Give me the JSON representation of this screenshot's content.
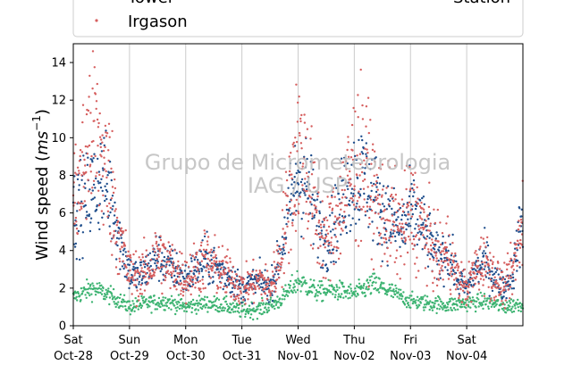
{
  "chart_data": {
    "type": "scatter",
    "ylabel_prefix": "Wind speed (",
    "ylabel_unit_base": "ms",
    "ylabel_unit_exp": "−1",
    "ylabel_suffix": ")",
    "ylim": [
      0,
      15
    ],
    "yticks": [
      0,
      2,
      4,
      6,
      8,
      10,
      12,
      14
    ],
    "xlim_hours": [
      0,
      192
    ],
    "x_ticks": [
      {
        "hour": 0,
        "day": "Sat",
        "date": "Oct-28"
      },
      {
        "hour": 24,
        "day": "Sun",
        "date": "Oct-29"
      },
      {
        "hour": 48,
        "day": "Mon",
        "date": "Oct-30"
      },
      {
        "hour": 72,
        "day": "Tue",
        "date": "Oct-31"
      },
      {
        "hour": 96,
        "day": "Wed",
        "date": "Nov-01"
      },
      {
        "hour": 120,
        "day": "Thu",
        "date": "Nov-02"
      },
      {
        "hour": 144,
        "day": "Fri",
        "date": "Nov-03"
      },
      {
        "hour": 168,
        "day": "Sat",
        "date": "Nov-04"
      }
    ],
    "grid": "vertical",
    "legend": {
      "placement": "top-left",
      "entries": [
        {
          "label": "Tower",
          "color": "#1f4e8c"
        },
        {
          "label": "Irgason",
          "color": "#d65f5f"
        }
      ],
      "extra_label": "Station"
    },
    "watermark": [
      "Grupo de Micrometeorologia",
      "IAG / USP"
    ],
    "series": [
      {
        "name": "Tower",
        "color": "#1f4e8c",
        "profile_hour": [
          0,
          4,
          8,
          12,
          16,
          20,
          24,
          28,
          32,
          36,
          40,
          44,
          48,
          52,
          56,
          60,
          64,
          68,
          72,
          76,
          80,
          84,
          88,
          92,
          96,
          100,
          104,
          108,
          112,
          116,
          120,
          124,
          128,
          132,
          136,
          140,
          144,
          148,
          152,
          156,
          160,
          164,
          168,
          172,
          176,
          180,
          184,
          188,
          192
        ],
        "profile_mean": [
          6.0,
          6.5,
          7.2,
          7.8,
          7.0,
          4.5,
          2.8,
          2.6,
          3.0,
          3.8,
          3.2,
          3.0,
          2.5,
          3.0,
          3.5,
          3.2,
          2.8,
          2.5,
          2.0,
          2.2,
          2.4,
          2.0,
          3.5,
          6.0,
          8.0,
          7.5,
          5.5,
          4.5,
          5.5,
          7.0,
          7.8,
          8.0,
          7.0,
          6.0,
          5.5,
          5.0,
          6.0,
          5.5,
          4.5,
          3.5,
          4.0,
          2.5,
          2.0,
          3.0,
          3.5,
          2.5,
          2.0,
          3.0,
          6.0
        ]
      },
      {
        "name": "Irgason",
        "color": "#d65f5f",
        "profile_hour": [
          0,
          4,
          8,
          12,
          16,
          20,
          24,
          28,
          32,
          36,
          40,
          44,
          48,
          52,
          56,
          60,
          64,
          68,
          72,
          76,
          80,
          84,
          88,
          92,
          96,
          100,
          104,
          108,
          112,
          116,
          120,
          124,
          128,
          132,
          136,
          140,
          144,
          148,
          152,
          156,
          160,
          164,
          168,
          172,
          176,
          180,
          184,
          188,
          192
        ],
        "profile_mean": [
          6.5,
          8.0,
          10.5,
          9.0,
          7.5,
          4.5,
          2.8,
          2.6,
          3.0,
          3.8,
          3.2,
          3.0,
          2.5,
          3.0,
          3.5,
          3.2,
          2.8,
          2.5,
          2.0,
          2.2,
          2.4,
          2.0,
          3.5,
          6.5,
          9.5,
          8.0,
          5.5,
          4.5,
          5.5,
          7.0,
          8.5,
          8.5,
          7.0,
          6.0,
          5.5,
          5.0,
          6.0,
          5.5,
          4.5,
          3.5,
          4.0,
          2.5,
          2.0,
          3.0,
          3.5,
          2.5,
          2.0,
          3.0,
          6.0
        ]
      },
      {
        "name": "Station",
        "color": "#3cb371",
        "profile_hour": [
          0,
          8,
          16,
          24,
          32,
          40,
          48,
          56,
          64,
          72,
          80,
          88,
          96,
          104,
          112,
          120,
          128,
          136,
          144,
          152,
          160,
          168,
          176,
          184,
          192
        ],
        "profile_mean": [
          1.5,
          2.0,
          1.6,
          1.0,
          1.2,
          1.3,
          1.0,
          1.2,
          1.1,
          0.8,
          0.9,
          1.3,
          2.4,
          1.8,
          1.9,
          1.7,
          2.2,
          1.8,
          1.3,
          1.2,
          1.1,
          1.2,
          1.3,
          1.0,
          1.2
        ]
      }
    ]
  }
}
